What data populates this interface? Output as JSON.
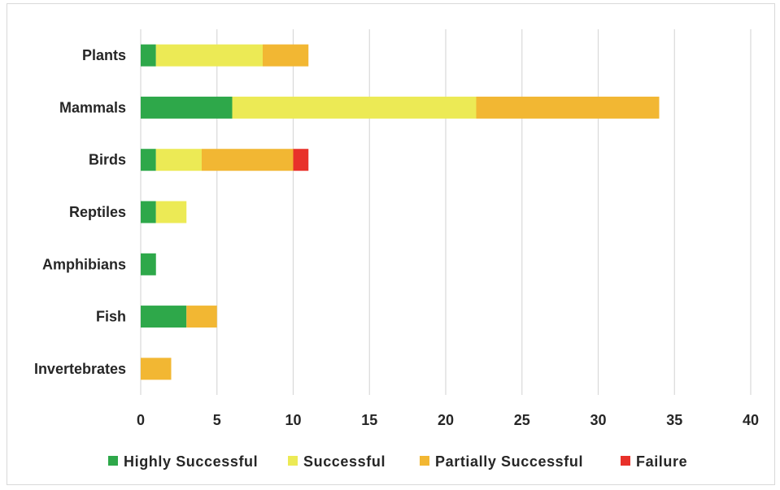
{
  "chart_data": {
    "type": "bar",
    "orientation": "horizontal",
    "stacked": true,
    "categories": [
      "Plants",
      "Mammals",
      "Birds",
      "Reptiles",
      "Amphibians",
      "Fish",
      "Invertebrates"
    ],
    "series": [
      {
        "name": "Highly Successful",
        "color": "#2ea84a",
        "values": [
          1,
          6,
          1,
          1,
          1,
          3,
          0
        ]
      },
      {
        "name": "Successful",
        "color": "#ecea55",
        "values": [
          7,
          16,
          3,
          2,
          0,
          0,
          0
        ]
      },
      {
        "name": "Partially Successful",
        "color": "#f2b733",
        "values": [
          3,
          12,
          6,
          0,
          0,
          2,
          2
        ]
      },
      {
        "name": "Failure",
        "color": "#e8312a",
        "values": [
          0,
          0,
          1,
          0,
          0,
          0,
          0
        ]
      }
    ],
    "xlim": [
      0,
      40
    ],
    "xticks": [
      0,
      5,
      10,
      15,
      20,
      25,
      30,
      35,
      40
    ],
    "grid": "vertical",
    "legend_position": "bottom"
  }
}
